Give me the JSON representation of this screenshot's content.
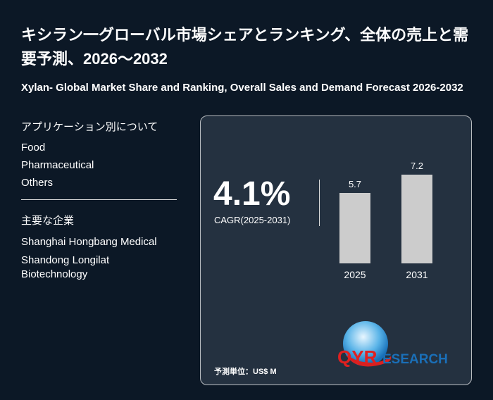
{
  "title": "キシラン一グローバル市場シェアとランキング、全体の売上と需要予測、2026～2032",
  "subtitle": "Xylan- Global Market Share and Ranking, Overall Sales and Demand Forecast 2026-2032",
  "applications": {
    "heading": "アプリケーション別について",
    "items": [
      "Food",
      "Pharmaceutical",
      "Others"
    ]
  },
  "companies": {
    "heading": "主要な企業",
    "items": [
      "Shanghai Hongbang Medical",
      "Shandong Longilat Biotechnology"
    ]
  },
  "card": {
    "cagr": "4.1%",
    "cagr_label": "CAGR(2025-2031)",
    "unit": "予測単位：US$ M",
    "logo_text": "QYRESEARCH"
  },
  "chart_data": {
    "type": "bar",
    "categories": [
      "2025",
      "2031"
    ],
    "values": [
      5.7,
      7.2
    ],
    "labels": [
      "5.7",
      "7.2"
    ],
    "bar_color": "#cccccc"
  },
  "colors": {
    "background": "#0c1826",
    "card": "#243140",
    "logo_red": "#e02020",
    "logo_blue": "#1a6fb8"
  }
}
